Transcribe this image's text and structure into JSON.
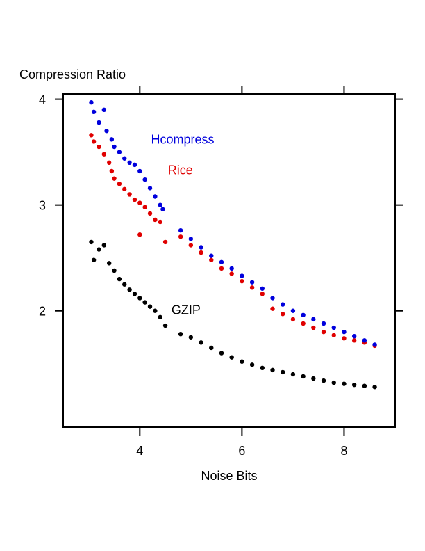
{
  "chart_data": {
    "type": "scatter",
    "title": "",
    "xlabel": "Noise Bits",
    "ylabel": "Compression Ratio",
    "xlim": [
      2.5,
      9.0
    ],
    "ylim": [
      0.9,
      4.05
    ],
    "x_ticks": [
      4,
      6,
      8
    ],
    "y_ticks": [
      2,
      3,
      4
    ],
    "x_tick_labels": [
      "4",
      "6",
      "8"
    ],
    "y_tick_labels": [
      "2",
      "3",
      "4"
    ],
    "grid": false,
    "legend": "none",
    "series": [
      {
        "name": "Hcompress",
        "color": "#0000dd",
        "points": [
          [
            3.05,
            3.97
          ],
          [
            3.1,
            3.88
          ],
          [
            3.2,
            3.78
          ],
          [
            3.3,
            3.9
          ],
          [
            3.35,
            3.7
          ],
          [
            3.45,
            3.62
          ],
          [
            3.5,
            3.55
          ],
          [
            3.6,
            3.5
          ],
          [
            3.7,
            3.44
          ],
          [
            3.8,
            3.4
          ],
          [
            3.9,
            3.38
          ],
          [
            4.0,
            3.32
          ],
          [
            4.1,
            3.24
          ],
          [
            4.2,
            3.16
          ],
          [
            4.3,
            3.08
          ],
          [
            4.4,
            3.0
          ],
          [
            4.45,
            2.96
          ],
          [
            4.8,
            2.76
          ],
          [
            5.0,
            2.68
          ],
          [
            5.2,
            2.6
          ],
          [
            5.4,
            2.52
          ],
          [
            5.6,
            2.46
          ],
          [
            5.8,
            2.4
          ],
          [
            6.0,
            2.33
          ],
          [
            6.2,
            2.27
          ],
          [
            6.4,
            2.21
          ],
          [
            6.6,
            2.12
          ],
          [
            6.8,
            2.06
          ],
          [
            7.0,
            2.0
          ],
          [
            7.2,
            1.96
          ],
          [
            7.4,
            1.92
          ],
          [
            7.6,
            1.88
          ],
          [
            7.8,
            1.84
          ],
          [
            8.0,
            1.8
          ],
          [
            8.2,
            1.76
          ],
          [
            8.4,
            1.72
          ],
          [
            8.6,
            1.68
          ]
        ],
        "label": "Hcompress"
      },
      {
        "name": "Rice",
        "color": "#e00000",
        "points": [
          [
            3.05,
            3.66
          ],
          [
            3.1,
            3.6
          ],
          [
            3.2,
            3.55
          ],
          [
            3.3,
            3.48
          ],
          [
            3.4,
            3.4
          ],
          [
            3.45,
            3.32
          ],
          [
            3.5,
            3.25
          ],
          [
            3.6,
            3.2
          ],
          [
            3.7,
            3.15
          ],
          [
            3.8,
            3.1
          ],
          [
            3.9,
            3.05
          ],
          [
            4.0,
            3.02
          ],
          [
            4.1,
            2.98
          ],
          [
            4.2,
            2.92
          ],
          [
            4.3,
            2.86
          ],
          [
            4.4,
            2.84
          ],
          [
            4.0,
            2.72
          ],
          [
            4.5,
            2.65
          ],
          [
            4.8,
            2.7
          ],
          [
            5.0,
            2.62
          ],
          [
            5.2,
            2.55
          ],
          [
            5.4,
            2.48
          ],
          [
            5.6,
            2.4
          ],
          [
            5.8,
            2.35
          ],
          [
            6.0,
            2.28
          ],
          [
            6.2,
            2.22
          ],
          [
            6.4,
            2.16
          ],
          [
            6.6,
            2.02
          ],
          [
            6.8,
            1.97
          ],
          [
            7.0,
            1.92
          ],
          [
            7.2,
            1.88
          ],
          [
            7.4,
            1.84
          ],
          [
            7.6,
            1.8
          ],
          [
            7.8,
            1.77
          ],
          [
            8.0,
            1.74
          ],
          [
            8.2,
            1.72
          ],
          [
            8.4,
            1.7
          ],
          [
            8.6,
            1.67
          ]
        ],
        "label": "Rice"
      },
      {
        "name": "GZIP",
        "color": "#000000",
        "points": [
          [
            3.05,
            2.65
          ],
          [
            3.1,
            2.48
          ],
          [
            3.2,
            2.58
          ],
          [
            3.3,
            2.62
          ],
          [
            3.4,
            2.45
          ],
          [
            3.5,
            2.38
          ],
          [
            3.6,
            2.3
          ],
          [
            3.7,
            2.25
          ],
          [
            3.8,
            2.2
          ],
          [
            3.9,
            2.16
          ],
          [
            4.0,
            2.12
          ],
          [
            4.1,
            2.08
          ],
          [
            4.2,
            2.04
          ],
          [
            4.3,
            2.0
          ],
          [
            4.4,
            1.94
          ],
          [
            4.5,
            1.86
          ],
          [
            4.8,
            1.78
          ],
          [
            5.0,
            1.75
          ],
          [
            5.2,
            1.7
          ],
          [
            5.4,
            1.65
          ],
          [
            5.6,
            1.6
          ],
          [
            5.8,
            1.56
          ],
          [
            6.0,
            1.52
          ],
          [
            6.2,
            1.49
          ],
          [
            6.4,
            1.46
          ],
          [
            6.6,
            1.44
          ],
          [
            6.8,
            1.42
          ],
          [
            7.0,
            1.4
          ],
          [
            7.2,
            1.38
          ],
          [
            7.4,
            1.36
          ],
          [
            7.6,
            1.34
          ],
          [
            7.8,
            1.32
          ],
          [
            8.0,
            1.31
          ],
          [
            8.2,
            1.3
          ],
          [
            8.4,
            1.29
          ],
          [
            8.6,
            1.28
          ]
        ],
        "label": "GZIP"
      }
    ]
  }
}
